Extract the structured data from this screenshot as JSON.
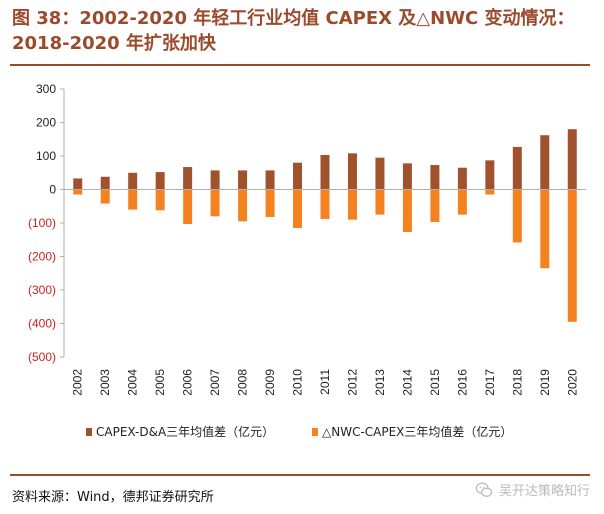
{
  "header": {
    "title_line1": "图 38：2002-2020 年轻工行业均值 CAPEX 及△NWC 变动情况：",
    "title_line2": "2018-2020 年扩张加快"
  },
  "colors": {
    "title": "#9c4a2c",
    "capex": "#a0522d",
    "nwc": "#f58220",
    "axis": "#b0b0b0"
  },
  "chart_data": {
    "type": "bar",
    "categories": [
      "2002",
      "2003",
      "2004",
      "2005",
      "2006",
      "2007",
      "2008",
      "2009",
      "2010",
      "2011",
      "2012",
      "2013",
      "2014",
      "2015",
      "2016",
      "2017",
      "2018",
      "2019",
      "2020"
    ],
    "series": [
      {
        "name": "CAPEX-D&A三年均值差（亿元）",
        "values": [
          33,
          38,
          50,
          52,
          67,
          57,
          57,
          57,
          80,
          103,
          108,
          95,
          78,
          73,
          65,
          87,
          127,
          162,
          180
        ]
      },
      {
        "name": "△NWC-CAPEX三年均值差（亿元）",
        "values": [
          -15,
          -42,
          -60,
          -62,
          -103,
          -80,
          -95,
          -82,
          -115,
          -88,
          -90,
          -75,
          -127,
          -97,
          -75,
          -15,
          -158,
          -235,
          -395
        ]
      }
    ],
    "ylim": [
      -500,
      300
    ],
    "yticks": [
      {
        "value": 300,
        "label": "300"
      },
      {
        "value": 200,
        "label": "200"
      },
      {
        "value": 100,
        "label": "100"
      },
      {
        "value": 0,
        "label": "0"
      },
      {
        "value": -100,
        "label": "(100)"
      },
      {
        "value": -200,
        "label": "(200)"
      },
      {
        "value": -300,
        "label": "(300)"
      },
      {
        "value": -400,
        "label": "(400)"
      },
      {
        "value": -500,
        "label": "(500)"
      }
    ],
    "legend_position": "bottom",
    "grid": false
  },
  "footer": {
    "source": "资料来源：Wind，德邦证券研究所",
    "watermark": "吴开达策略知行",
    "watermark_icon": "wechat-icon"
  }
}
